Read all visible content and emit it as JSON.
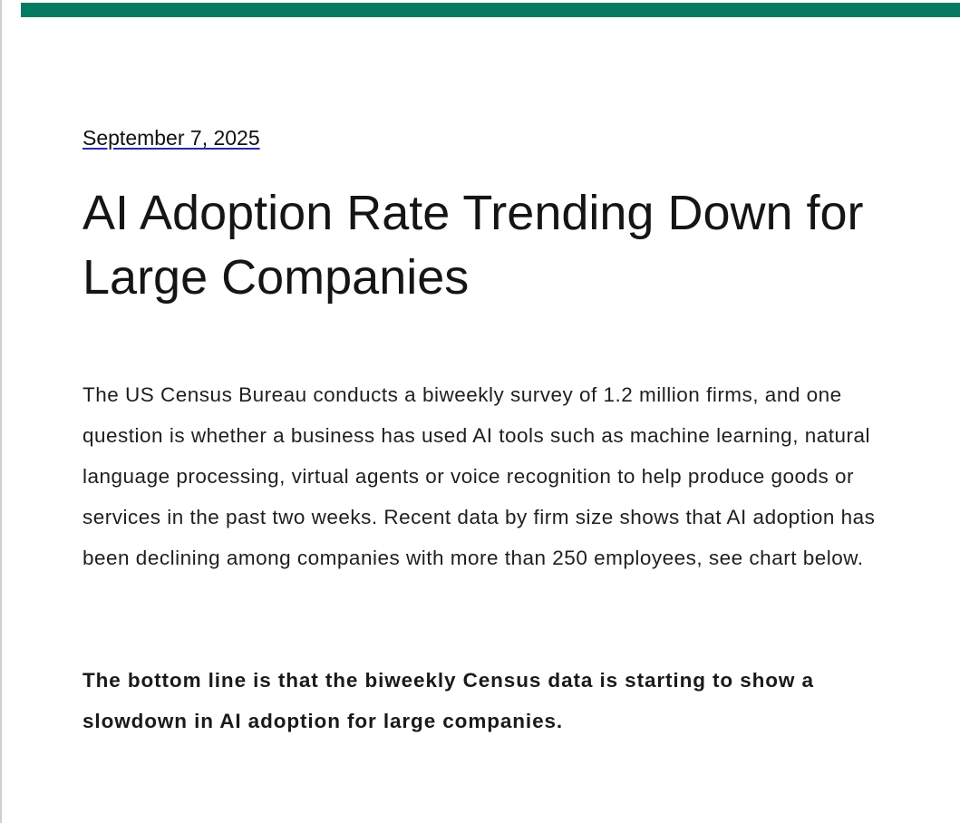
{
  "article": {
    "date": "September 7, 2025",
    "title": "AI Adoption Rate Trending Down for Large Companies",
    "body": "The US Census Bureau conducts a biweekly survey of 1.2 million firms, and one question is whether a business has used AI tools such as machine learning, natural language processing, virtual agents or voice recognition to help produce goods or services in the past two weeks. Recent data by firm size shows that AI adoption has been declining among companies with more than 250 employees, see chart below.",
    "bottom_line": "The bottom line is that the biweekly Census data is starting to show a slowdown in AI adoption for large companies."
  },
  "colors": {
    "accent_bar": "#057a62",
    "link_underline": "#2a2aa8",
    "text": "#1a1a1a"
  }
}
